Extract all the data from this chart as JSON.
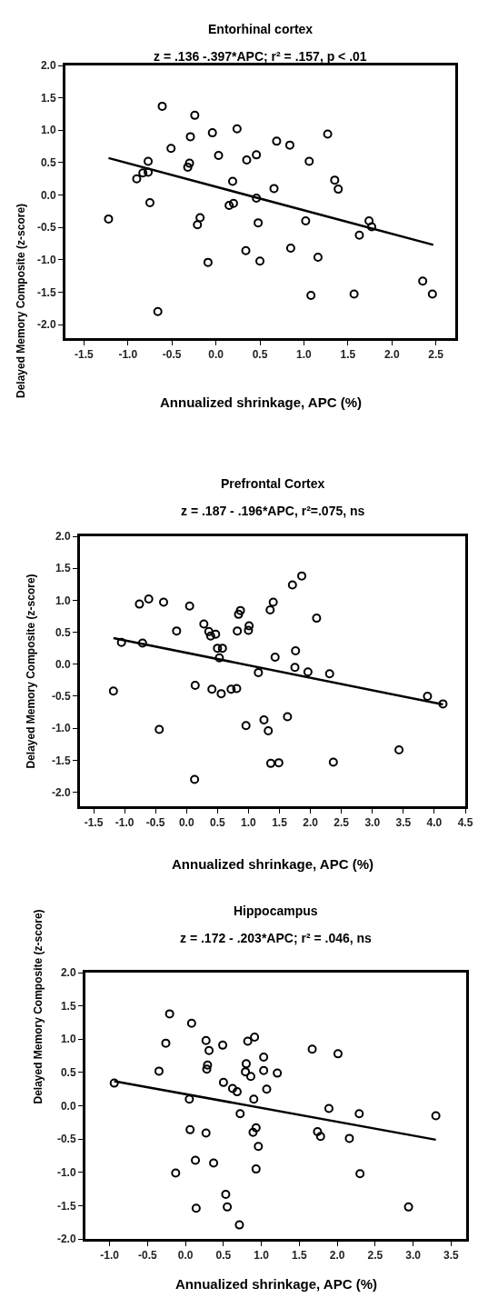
{
  "chart_data": [
    {
      "type": "scatter",
      "title": "Entorhinal cortex",
      "subtitle": "z = .136 -.397*APC; r² = .157, p < .01",
      "xlabel": "Annualized shrinkage, APC (%)",
      "ylabel": "Delayed Memory Composite (z-score)",
      "xlim": [
        -1.71,
        2.72
      ],
      "ylim": [
        -2.21,
        2.0
      ],
      "xticks": [
        {
          "value": -1.5,
          "label": "-1.5"
        },
        {
          "value": -1,
          "label": "-1.0"
        },
        {
          "value": -0.5,
          "label": "-0.5"
        },
        {
          "value": 0,
          "label": "0.0"
        },
        {
          "value": 0.5,
          "label": "0.5"
        },
        {
          "value": 1,
          "label": "1.0"
        },
        {
          "value": 1.5,
          "label": "1.5"
        },
        {
          "value": 2,
          "label": "2.0"
        },
        {
          "value": 2.5,
          "label": "2.5"
        }
      ],
      "yticks": [
        {
          "value": -2,
          "label": "-2.0"
        },
        {
          "value": -1.5,
          "label": "-1.5"
        },
        {
          "value": -1,
          "label": "-1.0"
        },
        {
          "value": -0.5,
          "label": "-0.5"
        },
        {
          "value": 0,
          "label": "0.0"
        },
        {
          "value": 0.5,
          "label": "0.5"
        },
        {
          "value": 1,
          "label": "1.0"
        },
        {
          "value": 1.5,
          "label": "1.5"
        },
        {
          "value": 2,
          "label": "2.0"
        }
      ],
      "series": [
        {
          "type": "scatter",
          "marker": "circle",
          "color": "#000000",
          "x": [
            -1.22,
            -0.61,
            -0.24,
            -0.29,
            -0.04,
            0.24,
            -0.51,
            0.03,
            -0.77,
            -0.83,
            -0.77,
            -0.9,
            -0.75,
            -0.3,
            -0.32,
            0.19,
            0.35,
            0.46,
            0.69,
            0.84,
            1.27,
            1.06,
            1.35,
            1.39,
            0.66,
            0.46,
            0.15,
            0.2,
            -0.18,
            -0.21,
            0.48,
            1.02,
            1.74,
            1.77,
            1.63,
            0.34,
            0.85,
            0.5,
            -0.09,
            1.16,
            1.08,
            1.57,
            2.35,
            2.46,
            -0.66
          ],
          "values": [
            -0.37,
            1.37,
            1.23,
            0.9,
            0.96,
            1.02,
            0.72,
            0.61,
            0.52,
            0.34,
            0.35,
            0.25,
            -0.12,
            0.49,
            0.43,
            0.21,
            0.54,
            0.62,
            0.83,
            0.77,
            0.94,
            0.52,
            0.23,
            0.09,
            0.1,
            -0.05,
            -0.16,
            -0.13,
            -0.35,
            -0.46,
            -0.43,
            -0.4,
            -0.4,
            -0.49,
            -0.62,
            -0.86,
            -0.82,
            -1.02,
            -1.04,
            -0.96,
            -1.55,
            -1.53,
            -1.33,
            -1.53,
            -1.8
          ]
        },
        {
          "type": "line",
          "marker": "none",
          "color": "#000000",
          "x": [
            -1.22,
            2.47
          ],
          "values": [
            0.57,
            -0.77
          ]
        }
      ]
    },
    {
      "type": "scatter",
      "title": "Prefrontal Cortex",
      "subtitle": "z = .187 - .196*APC, r²=.075, ns",
      "xlabel": "Annualized shrinkage, APC (%)",
      "ylabel": "Delayed Memory Composite (z-score)",
      "xlim": [
        -1.72,
        4.5
      ],
      "ylim": [
        -2.22,
        2.0
      ],
      "xticks": [
        {
          "value": -1.5,
          "label": "-1.5"
        },
        {
          "value": -1,
          "label": "-1.0"
        },
        {
          "value": -0.5,
          "label": "-0.5"
        },
        {
          "value": 0,
          "label": "0.0"
        },
        {
          "value": 0.5,
          "label": "0.5"
        },
        {
          "value": 1,
          "label": "1.0"
        },
        {
          "value": 1.5,
          "label": "1.5"
        },
        {
          "value": 2,
          "label": "2.0"
        },
        {
          "value": 2.5,
          "label": "2.5"
        },
        {
          "value": 3,
          "label": "3.0"
        },
        {
          "value": 3.5,
          "label": "3.5"
        },
        {
          "value": 4,
          "label": "4.0"
        },
        {
          "value": 4.5,
          "label": "4.5"
        }
      ],
      "yticks": [
        {
          "value": -2,
          "label": "-2.0"
        },
        {
          "value": -1.5,
          "label": "-1.5"
        },
        {
          "value": -1,
          "label": "-1.0"
        },
        {
          "value": -0.5,
          "label": "-0.5"
        },
        {
          "value": 0,
          "label": "0.0"
        },
        {
          "value": 0.5,
          "label": "0.5"
        },
        {
          "value": 1,
          "label": "1.0"
        },
        {
          "value": 1.5,
          "label": "1.5"
        },
        {
          "value": 2,
          "label": "2.0"
        }
      ],
      "series": [
        {
          "type": "scatter",
          "marker": "circle",
          "color": "#000000",
          "x": [
            -1.18,
            -1.05,
            -0.71,
            -0.76,
            -0.61,
            -0.37,
            0.05,
            -0.16,
            0.28,
            0.36,
            0.39,
            0.47,
            0.5,
            0.58,
            0.53,
            0.82,
            0.84,
            0.87,
            1.0,
            1.01,
            1.35,
            1.4,
            1.71,
            1.86,
            2.1,
            1.43,
            1.76,
            1.75,
            1.96,
            2.31,
            1.16,
            0.14,
            0.41,
            0.56,
            0.72,
            0.81,
            3.89,
            4.14,
            -0.44,
            0.96,
            1.25,
            1.32,
            1.63,
            1.36,
            1.49,
            2.37,
            3.43,
            0.13
          ],
          "values": [
            -0.42,
            0.34,
            0.33,
            0.94,
            1.02,
            0.97,
            0.91,
            0.52,
            0.63,
            0.51,
            0.44,
            0.47,
            0.25,
            0.25,
            0.1,
            0.52,
            0.78,
            0.84,
            0.53,
            0.6,
            0.85,
            0.97,
            1.24,
            1.38,
            0.72,
            0.11,
            0.21,
            -0.05,
            -0.12,
            -0.15,
            -0.13,
            -0.33,
            -0.39,
            -0.46,
            -0.39,
            -0.38,
            -0.5,
            -0.62,
            -1.02,
            -0.96,
            -0.87,
            -1.04,
            -0.82,
            -1.55,
            -1.54,
            -1.53,
            -1.34,
            -1.8
          ]
        },
        {
          "type": "line",
          "marker": "none",
          "color": "#000000",
          "x": [
            -1.18,
            4.14
          ],
          "values": [
            0.41,
            -0.63
          ]
        }
      ]
    },
    {
      "type": "scatter",
      "title": "Hippocampus",
      "subtitle": "z = .172 - .203*APC; r² = .046, ns",
      "xlabel": "Annualized shrinkage, APC (%)",
      "ylabel": "Delayed Memory Composite (z-score)",
      "xlim": [
        -1.32,
        3.7
      ],
      "ylim": [
        -2.0,
        2.0
      ],
      "xticks": [
        {
          "value": -1,
          "label": "-1.0"
        },
        {
          "value": -0.5,
          "label": "-0.5"
        },
        {
          "value": 0,
          "label": "0.0"
        },
        {
          "value": 0.5,
          "label": "0.5"
        },
        {
          "value": 1,
          "label": "1.0"
        },
        {
          "value": 1.5,
          "label": "1.5"
        },
        {
          "value": 2,
          "label": "2.0"
        },
        {
          "value": 2.5,
          "label": "2.5"
        },
        {
          "value": 3,
          "label": "3.0"
        },
        {
          "value": 3.5,
          "label": "3.5"
        }
      ],
      "yticks": [
        {
          "value": -2,
          "label": "-2.0"
        },
        {
          "value": -1.5,
          "label": "-1.5"
        },
        {
          "value": -1,
          "label": "-1.0"
        },
        {
          "value": -0.5,
          "label": "-0.5"
        },
        {
          "value": 0,
          "label": "0.0"
        },
        {
          "value": 0.5,
          "label": "0.5"
        },
        {
          "value": 1,
          "label": "1.0"
        },
        {
          "value": 1.5,
          "label": "1.5"
        },
        {
          "value": 2,
          "label": "2.0"
        }
      ],
      "series": [
        {
          "type": "scatter",
          "marker": "circle",
          "color": "#000000",
          "x": [
            -0.94,
            -0.35,
            -0.26,
            -0.21,
            0.08,
            0.05,
            0.27,
            0.31,
            0.29,
            0.28,
            0.49,
            0.5,
            0.62,
            0.68,
            0.82,
            0.91,
            0.8,
            0.79,
            0.86,
            1.03,
            1.03,
            1.21,
            1.07,
            0.9,
            0.72,
            0.06,
            0.27,
            0.93,
            0.89,
            0.96,
            0.13,
            0.37,
            -0.13,
            0.93,
            0.53,
            0.55,
            0.14,
            0.71,
            1.67,
            2.01,
            1.89,
            2.29,
            1.74,
            1.78,
            2.16,
            2.3,
            2.94,
            3.3
          ],
          "values": [
            0.34,
            0.52,
            0.94,
            1.38,
            1.24,
            0.1,
            0.98,
            0.83,
            0.61,
            0.55,
            0.91,
            0.35,
            0.26,
            0.21,
            0.97,
            1.03,
            0.63,
            0.51,
            0.44,
            0.73,
            0.53,
            0.49,
            0.25,
            0.1,
            -0.12,
            -0.36,
            -0.41,
            -0.33,
            -0.4,
            -0.61,
            -0.82,
            -0.86,
            -1.01,
            -0.95,
            -1.33,
            -1.52,
            -1.54,
            -1.79,
            0.85,
            0.78,
            -0.04,
            -0.12,
            -0.39,
            -0.46,
            -0.49,
            -1.02,
            -1.52,
            -0.15
          ]
        },
        {
          "type": "line",
          "marker": "none",
          "color": "#000000",
          "x": [
            -0.94,
            3.3
          ],
          "values": [
            0.37,
            -0.51
          ]
        }
      ]
    }
  ]
}
